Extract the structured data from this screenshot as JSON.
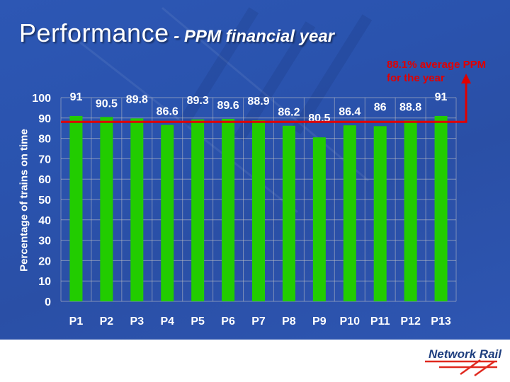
{
  "slide": {
    "title_main": "Performance",
    "title_sub": " - PPM financial year"
  },
  "chart_data": {
    "type": "bar",
    "categories": [
      "P1",
      "P2",
      "P3",
      "P4",
      "P5",
      "P6",
      "P7",
      "P8",
      "P9",
      "P10",
      "P11",
      "P12",
      "P13"
    ],
    "values": [
      91,
      90.5,
      89.8,
      86.6,
      89.3,
      89.6,
      88.9,
      86.2,
      80.5,
      86.4,
      86,
      88.8,
      91
    ],
    "data_labels": [
      "91",
      "90.5",
      "89.8",
      "86.6",
      "89.3",
      "89.6",
      "88.9",
      "86.2",
      "80.5",
      "86.4",
      "86",
      "88.8",
      "91"
    ],
    "ylabel": "Percentage of trains on time",
    "xlabel": "",
    "ylim": [
      0,
      100
    ],
    "yticks": [
      0,
      10,
      20,
      30,
      40,
      50,
      60,
      70,
      80,
      90,
      100
    ],
    "average_line": {
      "value": 88.1,
      "label_line1": "88.1% average PPM",
      "label_line2": "for the year"
    },
    "colors": {
      "bar": "#22cc00",
      "average": "#e00000",
      "text": "#ffffff",
      "grid": "#c8c8c8"
    },
    "grid": true,
    "legend": "none"
  },
  "footer": {
    "brand": "Network Rail",
    "brand_color": "#1f3f7f",
    "mark_color": "#e0291f"
  }
}
